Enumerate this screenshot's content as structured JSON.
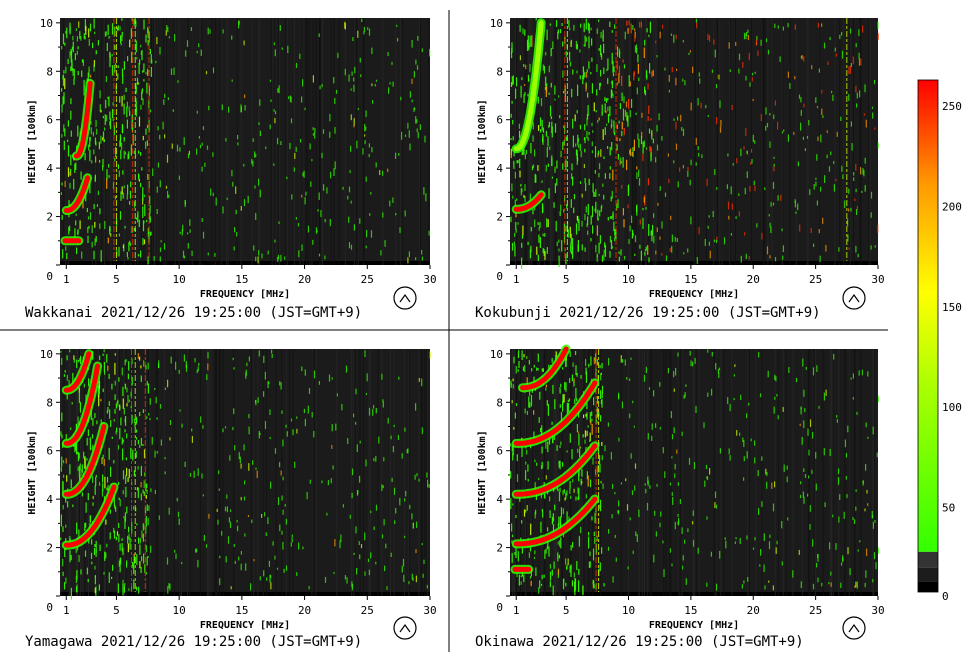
{
  "chart_data": [
    {
      "type": "heatmap",
      "station": "Wakkanai",
      "caption": "Wakkanai 2021/12/26 19:25:00 (JST=GMT+9)",
      "xlabel": "FREQUENCY [MHz]",
      "ylabel": "HEIGHT [100km]",
      "xlim": [
        0.5,
        30
      ],
      "ylim": [
        0,
        10.2
      ],
      "x_ticks": [
        1,
        5,
        10,
        15,
        20,
        25,
        30
      ],
      "y_ticks": [
        0,
        2,
        4,
        6,
        8,
        10
      ],
      "traces": [
        {
          "f_start": 1.0,
          "h_start": 2.25,
          "f_end": 2.7,
          "h_end": 3.6,
          "level": 240
        },
        {
          "f_start": 1.8,
          "h_start": 4.5,
          "f_end": 2.9,
          "h_end": 7.5,
          "level": 240
        },
        {
          "f_start": 0.9,
          "h_start": 1.0,
          "f_end": 2.0,
          "h_end": 1.0,
          "level": 240
        }
      ],
      "vertical_lines_mhz": [
        4.8,
        5.0,
        6.3,
        6.5,
        7.6
      ],
      "noise_to_mhz": 7.8
    },
    {
      "type": "heatmap",
      "station": "Kokubunji",
      "caption": "Kokubunji 2021/12/26 19:25:00 (JST=GMT+9)",
      "xlabel": "FREQUENCY [MHz]",
      "ylabel": "HEIGHT [100km]",
      "xlim": [
        0.5,
        30
      ],
      "ylim": [
        0,
        10.2
      ],
      "x_ticks": [
        1,
        5,
        10,
        15,
        20,
        25,
        30
      ],
      "y_ticks": [
        0,
        2,
        4,
        6,
        8,
        10
      ],
      "traces": [
        {
          "f_start": 1.0,
          "h_start": 2.3,
          "f_end": 3.0,
          "h_end": 2.9,
          "level": 230
        },
        {
          "f_start": 1.0,
          "h_start": 4.8,
          "f_end": 3.0,
          "h_end": 10.0,
          "level": 120
        }
      ],
      "vertical_lines_mhz": [
        4.9,
        5.1,
        9.0,
        27.5
      ],
      "noise_to_mhz": 12.0
    },
    {
      "type": "heatmap",
      "station": "Yamagawa",
      "caption": "Yamagawa 2021/12/26 19:25:00 (JST=GMT+9)",
      "xlabel": "FREQUENCY [MHz]",
      "ylabel": "HEIGHT [100km]",
      "xlim": [
        0.5,
        30
      ],
      "ylim": [
        0,
        10.2
      ],
      "x_ticks": [
        1,
        5,
        10,
        15,
        20,
        25,
        30
      ],
      "y_ticks": [
        0,
        2,
        4,
        6,
        8,
        10
      ],
      "traces": [
        {
          "f_start": 1.0,
          "h_start": 2.1,
          "f_end": 4.8,
          "h_end": 4.5,
          "level": 240
        },
        {
          "f_start": 1.0,
          "h_start": 4.2,
          "f_end": 4.0,
          "h_end": 7.0,
          "level": 240
        },
        {
          "f_start": 1.0,
          "h_start": 6.3,
          "f_end": 3.5,
          "h_end": 9.5,
          "level": 240
        },
        {
          "f_start": 1.0,
          "h_start": 8.5,
          "f_end": 2.8,
          "h_end": 10.0,
          "level": 240
        }
      ],
      "vertical_lines_mhz": [
        6.2,
        6.5,
        7.3
      ],
      "noise_to_mhz": 7.5
    },
    {
      "type": "heatmap",
      "station": "Okinawa",
      "caption": "Okinawa 2021/12/26 19:25:00 (JST=GMT+9)",
      "xlabel": "FREQUENCY [MHz]",
      "ylabel": "HEIGHT [100km]",
      "xlim": [
        0.5,
        30
      ],
      "ylim": [
        0,
        10.2
      ],
      "x_ticks": [
        1,
        5,
        10,
        15,
        20,
        25,
        30
      ],
      "y_ticks": [
        0,
        2,
        4,
        6,
        8,
        10
      ],
      "traces": [
        {
          "f_start": 1.0,
          "h_start": 2.15,
          "f_end": 7.3,
          "h_end": 4.0,
          "level": 245
        },
        {
          "f_start": 1.0,
          "h_start": 4.2,
          "f_end": 7.3,
          "h_end": 6.2,
          "level": 245
        },
        {
          "f_start": 1.0,
          "h_start": 6.3,
          "f_end": 7.3,
          "h_end": 8.8,
          "level": 240
        },
        {
          "f_start": 1.5,
          "h_start": 8.6,
          "f_end": 5.0,
          "h_end": 10.2,
          "level": 220
        },
        {
          "f_start": 0.9,
          "h_start": 1.1,
          "f_end": 2.0,
          "h_end": 1.1,
          "level": 240
        }
      ],
      "vertical_lines_mhz": [
        7.4,
        7.6
      ],
      "noise_to_mhz": 8.0
    }
  ],
  "colorbar": {
    "ticks": [
      0,
      50,
      100,
      150,
      200,
      250
    ],
    "range": [
      0,
      255
    ],
    "colors": {
      "low": "#111111",
      "green": "#33ff00",
      "yellow": "#ffff00",
      "orange": "#ff9900",
      "red": "#ff0000"
    }
  },
  "logo_icon": "ionosonde-logo-icon"
}
